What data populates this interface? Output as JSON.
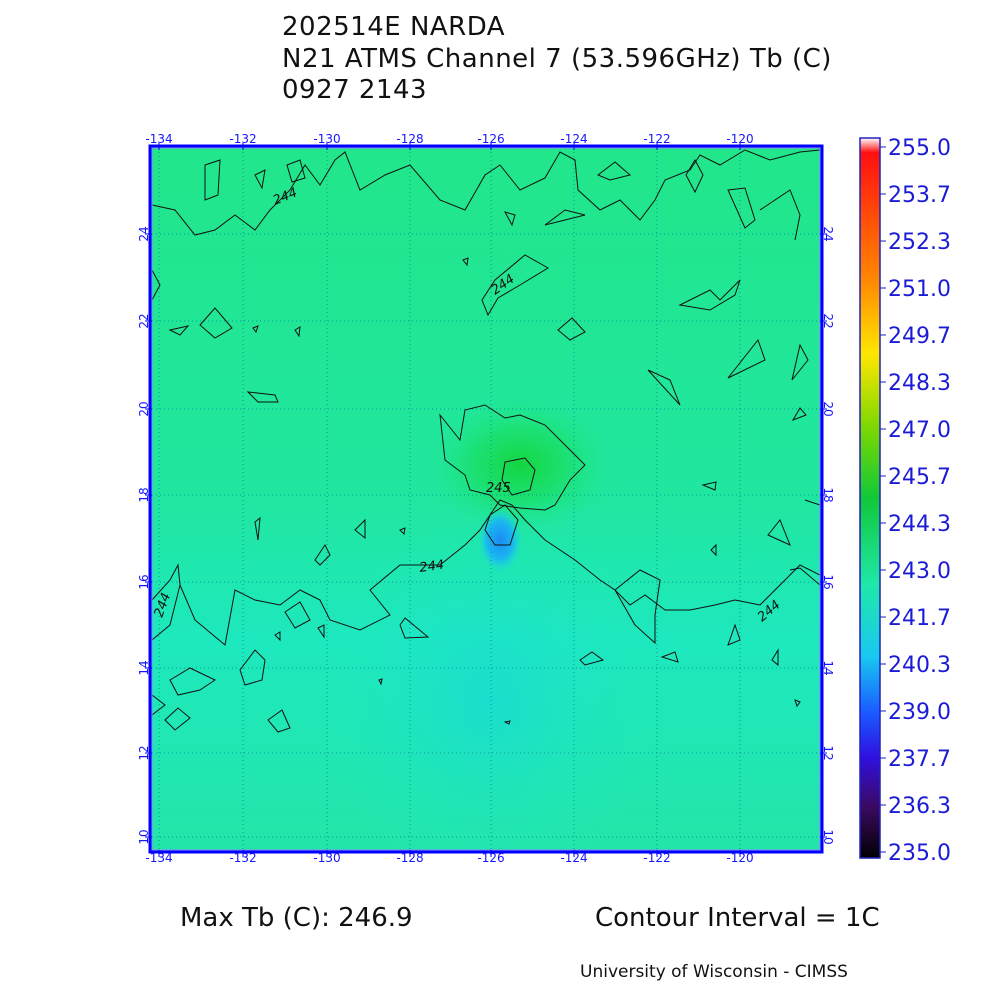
{
  "header": {
    "storm": "202514E NARDA",
    "product": "N21 ATMS Channel 7 (53.596GHz) Tb (C)",
    "datetime": "0927 2143"
  },
  "map": {
    "lon_labels": [
      "-134",
      "-132",
      "-130",
      "-128",
      "-126",
      "-124",
      "-122",
      "-120"
    ],
    "lat_labels": [
      "10",
      "12",
      "14",
      "16",
      "18",
      "20",
      "22",
      "24"
    ],
    "contour_labels": [
      "244",
      "244",
      "244",
      "244",
      "244",
      "245"
    ],
    "colors": {
      "frame": "#0000ff",
      "grid": "#009a9a",
      "background_field": "#1fe895",
      "warm_core": "#1ad94c",
      "cold_spot": "#1aa0f0"
    }
  },
  "colorbar": {
    "labels": [
      "255.0",
      "253.7",
      "252.3",
      "251.0",
      "249.7",
      "248.3",
      "247.0",
      "245.7",
      "244.3",
      "243.0",
      "241.7",
      "240.3",
      "239.0",
      "237.7",
      "236.3",
      "235.0"
    ],
    "min": 235.0,
    "max": 255.0
  },
  "footer": {
    "max_tb": "Max Tb (C): 246.9",
    "contour_interval": "Contour Interval = 1C",
    "credit": "University of Wisconsin - CIMSS"
  }
}
